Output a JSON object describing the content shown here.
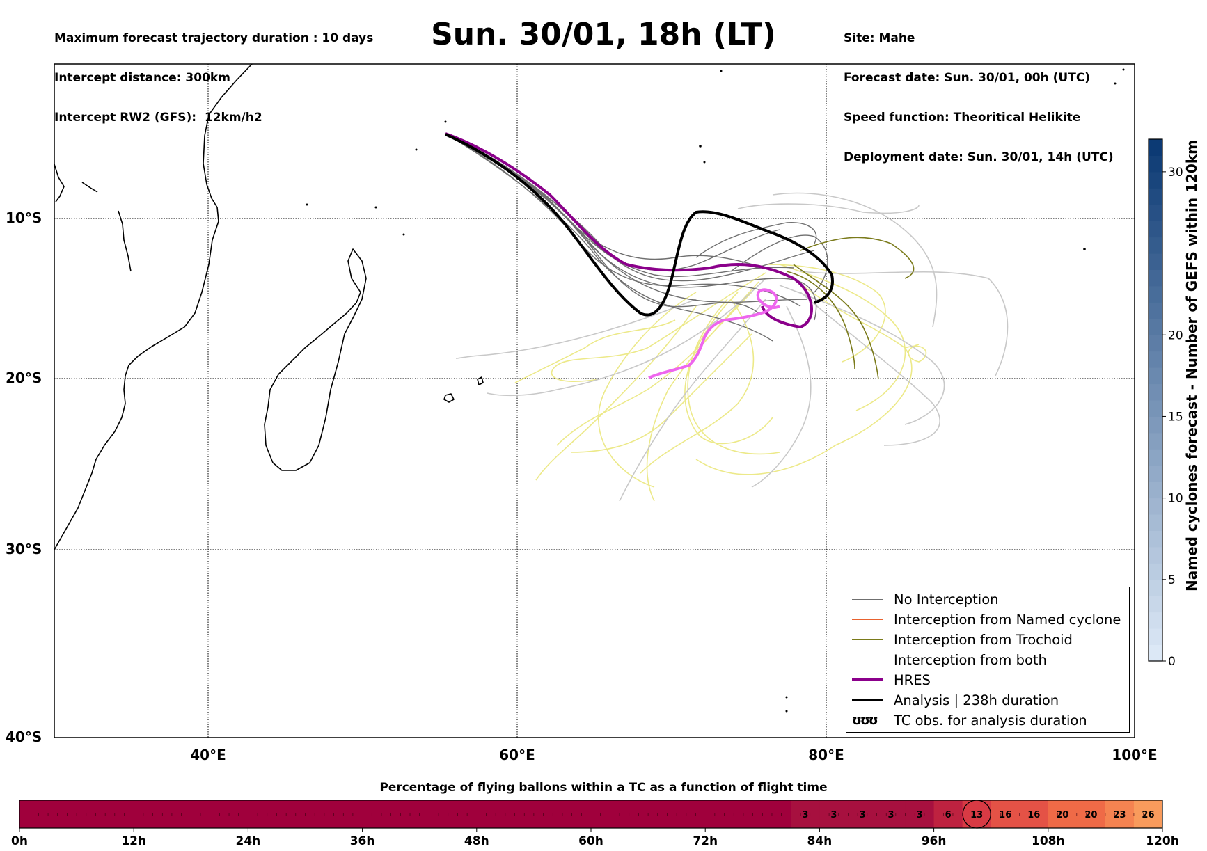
{
  "header": {
    "left_lines": [
      "Maximum forecast trajectory duration : 10 days",
      "Intercept distance: 300km",
      "Intercept RW2 (GFS):  12km/h2"
    ],
    "right_lines": [
      "Site: Mahe",
      "Forecast date: Sun. 30/01, 00h (UTC)",
      "Speed function: Theoritical Helikite",
      "Deployment date: Sun. 30/01, 14h (UTC)"
    ],
    "title": "Sun. 30/01, 18h (LT)"
  },
  "map": {
    "lat_labels": [
      "10°S",
      "20°S",
      "30°S",
      "40°S"
    ],
    "lon_labels": [
      "40°E",
      "60°E",
      "80°E",
      "100°E"
    ],
    "extent": {
      "lon_min": 30,
      "lon_max": 100,
      "lat_top": -0.5,
      "lat_bottom": -40
    }
  },
  "legend": {
    "items": [
      {
        "label": "No Interception",
        "color": "#6f6f6f"
      },
      {
        "label": "Interception from Named cyclone",
        "color": "#e8622f"
      },
      {
        "label": "Interception from Trochoid",
        "color": "#7a7a1a"
      },
      {
        "label": "Interception from both",
        "color": "#2a9a2a"
      },
      {
        "label": "HRES",
        "color": "#8b008b"
      },
      {
        "label": "Analysis | 238h duration",
        "color": "#000000"
      },
      {
        "label": "TC obs. for analysis duration",
        "symbol": "ʊʊʊ"
      }
    ]
  },
  "colorbar_right": {
    "title": "Named cyclones forecast - Number of GEFS within 120km",
    "ticks": [
      "0",
      "5",
      "10",
      "15",
      "20",
      "30"
    ],
    "range": [
      0,
      32
    ],
    "color_low": "#dce8f6",
    "color_high": "#0c3a74"
  },
  "bottom_bar": {
    "label": "Percentage of flying ballons within a TC as a function of flight time",
    "time_labels": [
      "0h",
      "12h",
      "24h",
      "36h",
      "48h",
      "60h",
      "72h",
      "84h",
      "96h",
      "108h",
      "120h"
    ],
    "hours_max": 120,
    "zero_color": "#a0003c",
    "cells": [
      {
        "start_h": 81,
        "value": "3",
        "color": "#a7103f"
      },
      {
        "start_h": 84,
        "value": "3",
        "color": "#a7103f"
      },
      {
        "start_h": 87,
        "value": "3",
        "color": "#a7103f"
      },
      {
        "start_h": 90,
        "value": "3",
        "color": "#a7103f"
      },
      {
        "start_h": 93,
        "value": "3",
        "color": "#a7103f"
      },
      {
        "start_h": 96,
        "value": "6",
        "color": "#be2240"
      },
      {
        "start_h": 99,
        "value": "13",
        "color": "#d83a44",
        "circled": true
      },
      {
        "start_h": 102,
        "value": "16",
        "color": "#e45246"
      },
      {
        "start_h": 105,
        "value": "16",
        "color": "#e45246"
      },
      {
        "start_h": 108,
        "value": "20",
        "color": "#ef6a47"
      },
      {
        "start_h": 111,
        "value": "20",
        "color": "#ef6a47"
      },
      {
        "start_h": 114,
        "value": "23",
        "color": "#f58351"
      },
      {
        "start_h": 117,
        "value": "26",
        "color": "#f99b5c"
      }
    ]
  }
}
